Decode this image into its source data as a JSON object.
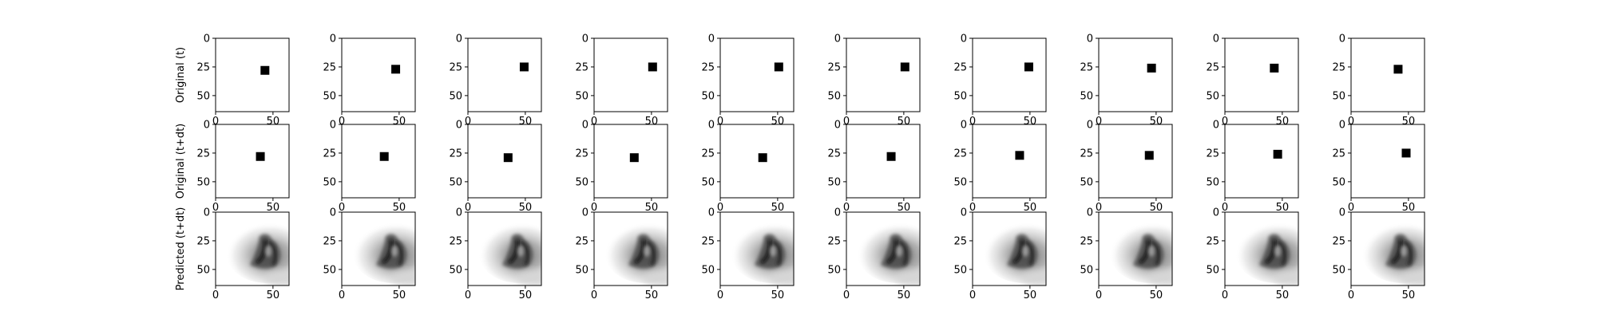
{
  "chart_data": {
    "type": "image-grid",
    "image_size": 64,
    "axis_range": [
      0,
      63
    ],
    "x_ticks": [
      0,
      50
    ],
    "y_ticks": [
      0,
      25,
      50
    ],
    "colormap": "grayscale",
    "rows": [
      {
        "label": "Original (t)",
        "kind": "square",
        "squares": [
          {
            "x": 43,
            "y": 28
          },
          {
            "x": 47,
            "y": 27
          },
          {
            "x": 49,
            "y": 25
          },
          {
            "x": 51,
            "y": 25
          },
          {
            "x": 51,
            "y": 25
          },
          {
            "x": 51,
            "y": 25
          },
          {
            "x": 49,
            "y": 25
          },
          {
            "x": 46,
            "y": 26
          },
          {
            "x": 43,
            "y": 26
          },
          {
            "x": 41,
            "y": 27
          }
        ]
      },
      {
        "label": "Original (t+dt)",
        "kind": "square",
        "squares": [
          {
            "x": 39,
            "y": 28
          },
          {
            "x": 37,
            "y": 28
          },
          {
            "x": 35,
            "y": 29
          },
          {
            "x": 35,
            "y": 29
          },
          {
            "x": 37,
            "y": 29
          },
          {
            "x": 39,
            "y": 28
          },
          {
            "x": 41,
            "y": 27
          },
          {
            "x": 44,
            "y": 27
          },
          {
            "x": 46,
            "y": 26
          },
          {
            "x": 48,
            "y": 25
          }
        ]
      },
      {
        "label": "Predicted (t+dt)",
        "kind": "blob",
        "panels": 10
      }
    ]
  }
}
